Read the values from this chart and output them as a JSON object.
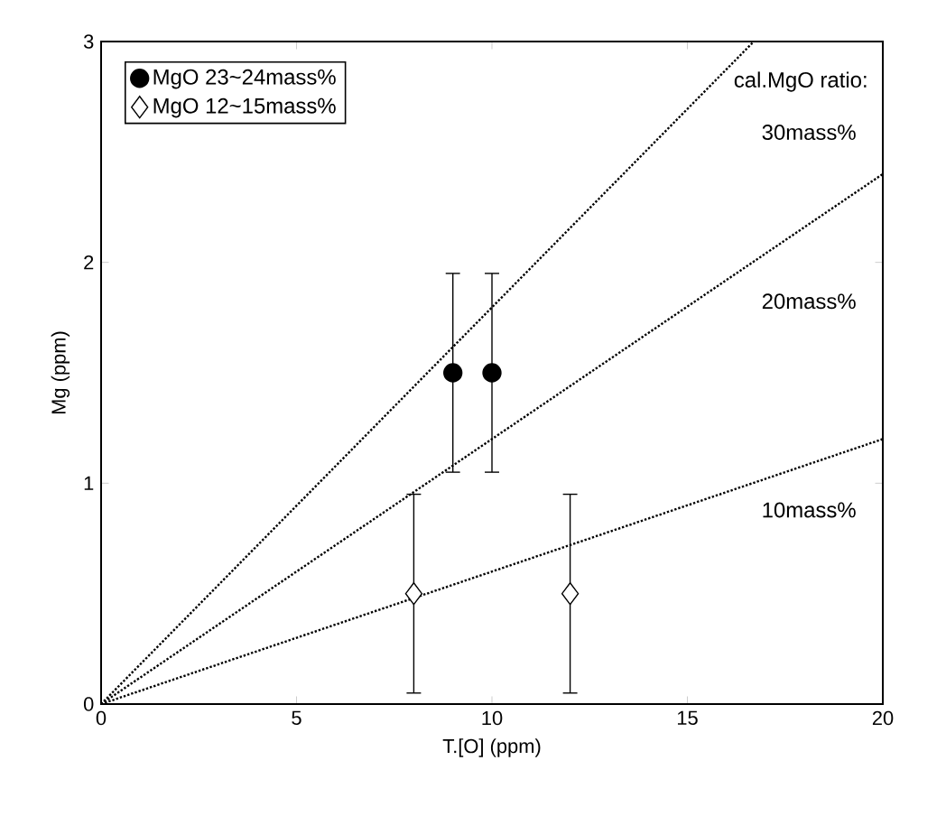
{
  "chart_data": {
    "type": "scatter",
    "xlabel": "T.[O] (ppm)",
    "ylabel": "Mg (ppm)",
    "xlim": [
      0,
      20
    ],
    "ylim": [
      0,
      3
    ],
    "xticks": [
      0,
      5,
      10,
      15,
      20
    ],
    "yticks": [
      0,
      1,
      2,
      3
    ],
    "grid": false,
    "legend": "top left",
    "series": [
      {
        "name": "MgO 23~24mass%",
        "marker": "circle",
        "color": "#000000",
        "x": [
          9,
          10
        ],
        "values": [
          1.5,
          1.5
        ],
        "errors": [
          0.45,
          0.45
        ]
      },
      {
        "name": "MgO 12~15mass%",
        "marker": "diamond",
        "color": "#ffffff",
        "x": [
          8,
          12
        ],
        "values": [
          0.5,
          0.5
        ],
        "errors": [
          0.45,
          0.45
        ]
      },
      {
        "type": "line",
        "marker": "none",
        "line_style": "dotted",
        "color": "#000000",
        "x": [
          0,
          16.7
        ],
        "values": [
          0,
          3
        ]
      },
      {
        "type": "line",
        "marker": "none",
        "line_style": "dotted",
        "color": "#000000",
        "x": [
          0,
          20
        ],
        "values": [
          0,
          2.4
        ]
      },
      {
        "type": "line",
        "marker": "none",
        "line_style": "dotted",
        "color": "#000000",
        "x": [
          0,
          20
        ],
        "values": [
          0,
          1.2
        ]
      }
    ],
    "annotations": [
      "cal.MgO ratio:",
      "30mass%",
      "20mass%",
      "10mass%"
    ]
  }
}
